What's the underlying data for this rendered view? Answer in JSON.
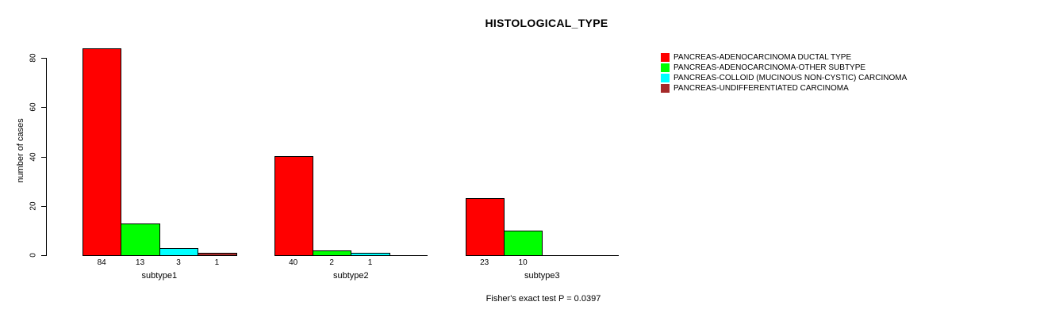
{
  "title": "HISTOLOGICAL_TYPE",
  "chart_data": {
    "type": "bar",
    "title": "HISTOLOGICAL_TYPE",
    "xlabel": "",
    "ylabel": "number of cases",
    "ylim": [
      0,
      84
    ],
    "yticks": [
      0,
      20,
      40,
      60,
      80
    ],
    "grid": false,
    "legend_position": "right",
    "background": "#FFFFFF",
    "axis_color": "#000000",
    "categories": [
      "subtype1",
      "subtype2",
      "subtype3"
    ],
    "series": [
      {
        "name": "PANCREAS-ADENOCARCINOMA DUCTAL TYPE",
        "color": "#FF0000",
        "values": [
          84,
          40,
          23
        ]
      },
      {
        "name": "PANCREAS-ADENOCARCINOMA-OTHER SUBTYPE",
        "color": "#00FF00",
        "values": [
          13,
          2,
          10
        ]
      },
      {
        "name": "PANCREAS-COLLOID (MUCINOUS NON-CYSTIC) CARCINOMA",
        "color": "#00FFFF",
        "values": [
          3,
          1,
          0
        ]
      },
      {
        "name": "PANCREAS-UNDIFFERENTIATED CARCINOMA",
        "color": "#A52A2A",
        "values": [
          1,
          0,
          0
        ]
      }
    ],
    "bar_value_labels_shown": true,
    "annotation": "Fisher's exact test P = 0.0397"
  }
}
